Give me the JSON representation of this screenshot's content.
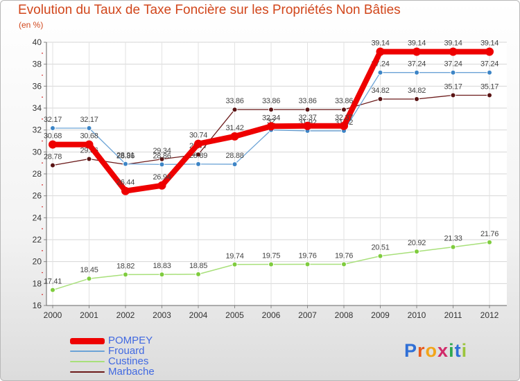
{
  "title": "Evolution du Taux de Taxe Foncière sur les Propriétés Non Bâties",
  "subtitle": "(en %)",
  "logo": {
    "letters": [
      {
        "ch": "P",
        "color": "#2f6fd6"
      },
      {
        "ch": "r",
        "color": "#e85a1c"
      },
      {
        "ch": "o",
        "color": "#f2a51a"
      },
      {
        "ch": "x",
        "color": "#d12b6a"
      },
      {
        "ch": "i",
        "color": "#2fa84f"
      },
      {
        "ch": "t",
        "color": "#2f6fd6"
      },
      {
        "ch": "i",
        "color": "#9bc53d"
      }
    ]
  },
  "chart_data": {
    "type": "line",
    "title": "Evolution du Taux de Taxe Foncière sur les Propriétés Non Bâties",
    "ylabel": "(en %)",
    "x": [
      "2000",
      "2001",
      "2002",
      "2003",
      "2004",
      "2005",
      "2006",
      "2007",
      "2008",
      "2009",
      "2010",
      "2011",
      "2012"
    ],
    "ylim": [
      16,
      40
    ],
    "yticks": [
      "16",
      "18",
      "20",
      "22",
      "24",
      "26",
      "28",
      "30",
      "32",
      "34",
      "36",
      "38",
      "40"
    ],
    "grid": true,
    "legend_position": "bottom-left",
    "series": [
      {
        "name": "Marbache",
        "color": "#6b1a1a",
        "point_color": "#5a1414",
        "width": 1.3,
        "radius": 3.5,
        "values": [
          28.78,
          29.36,
          28.86,
          29.34,
          29.77,
          33.86,
          33.86,
          33.86,
          33.86,
          34.82,
          34.82,
          35.17,
          35.17
        ],
        "labels": [
          "28.78",
          "29.36",
          "28.86",
          "29.34",
          "29.77",
          "33.86",
          "33.86",
          "33.86",
          "33.86",
          "34.82",
          "34.82",
          "35.17",
          "35.17"
        ]
      },
      {
        "name": "Frouard",
        "color": "#6ba3d6",
        "point_color": "#3d85c6",
        "width": 1.3,
        "radius": 3.5,
        "values": [
          32.17,
          32.17,
          28.91,
          28.86,
          28.89,
          28.88,
          32.0,
          31.92,
          31.92,
          37.24,
          37.24,
          37.24,
          37.24
        ],
        "labels": [
          "32.17",
          "32.17",
          "28.91",
          "28.86",
          "28.89",
          "28.88",
          "32",
          "31.92",
          "31.92",
          "37.24",
          "37.24",
          "37.24",
          "37.24"
        ]
      },
      {
        "name": "Custines",
        "color": "#a8e07a",
        "point_color": "#7fcc3e",
        "width": 1.5,
        "radius": 3.5,
        "values": [
          17.41,
          18.45,
          18.82,
          18.83,
          18.85,
          19.74,
          19.75,
          19.76,
          19.76,
          20.51,
          20.92,
          21.33,
          21.76
        ],
        "labels": [
          "17.41",
          "18.45",
          "18.82",
          "18.83",
          "18.85",
          "19.74",
          "19.75",
          "19.76",
          "19.76",
          "20.51",
          "20.92",
          "21.33",
          "21.76"
        ]
      },
      {
        "name": "POMPEY",
        "color": "#ee0000",
        "point_color": "#ee0000",
        "width": 8,
        "radius": 6,
        "values": [
          30.68,
          30.68,
          26.44,
          26.94,
          30.74,
          31.42,
          32.34,
          32.37,
          32.37,
          39.14,
          39.14,
          39.14,
          39.14
        ],
        "labels": [
          "30.68",
          "30.68",
          "26.44",
          "26.94",
          "30.74",
          "31.42",
          "32.34",
          "32.37",
          "32.37",
          "39.14",
          "39.14",
          "39.14",
          "39.14"
        ]
      }
    ],
    "legend": [
      {
        "name": "POMPEY",
        "color": "#ee0000",
        "thickness": 9
      },
      {
        "name": "Frouard",
        "color": "#6ba3d6",
        "thickness": 2
      },
      {
        "name": "Custines",
        "color": "#a8e07a",
        "thickness": 2
      },
      {
        "name": "Marbache",
        "color": "#6b1a1a",
        "thickness": 2
      }
    ]
  }
}
